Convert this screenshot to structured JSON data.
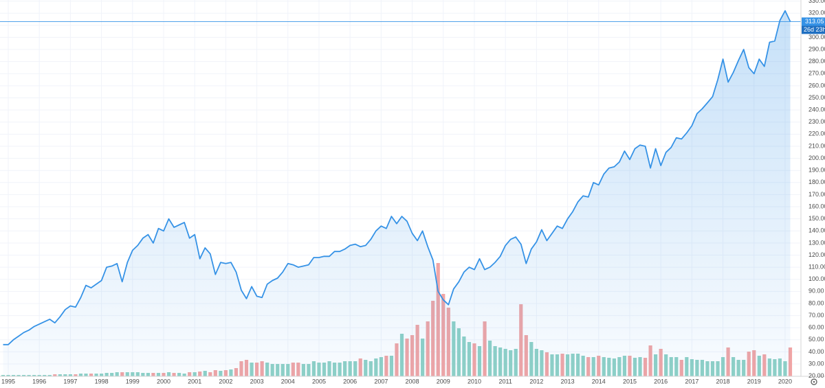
{
  "chart_data": {
    "type": "line",
    "categories": [
      null,
      "1995",
      null,
      null,
      null,
      null,
      null,
      "1996",
      null,
      null,
      null,
      null,
      null,
      "1997",
      null,
      null,
      null,
      null,
      null,
      "1998",
      null,
      null,
      null,
      null,
      null,
      "1999",
      null,
      null,
      null,
      null,
      null,
      "2000",
      null,
      null,
      null,
      null,
      null,
      "2001",
      null,
      null,
      null,
      null,
      null,
      "2002",
      null,
      null,
      null,
      null,
      null,
      "2003",
      null,
      null,
      null,
      null,
      null,
      "2004",
      null,
      null,
      null,
      null,
      null,
      "2005",
      null,
      null,
      null,
      null,
      null,
      "2006",
      null,
      null,
      null,
      null,
      null,
      "2007",
      null,
      null,
      null,
      null,
      null,
      "2008",
      null,
      null,
      null,
      null,
      null,
      "2009",
      null,
      null,
      null,
      null,
      null,
      "2010",
      null,
      null,
      null,
      null,
      null,
      "2011",
      null,
      null,
      null,
      null,
      null,
      "2012",
      null,
      null,
      null,
      null,
      null,
      "2013",
      null,
      null,
      null,
      null,
      null,
      "2014",
      null,
      null,
      null,
      null,
      null,
      "2015",
      null,
      null,
      null,
      null,
      null,
      "2016",
      null,
      null,
      null,
      null,
      null,
      "2017",
      null,
      null,
      null,
      null,
      null,
      "2018",
      null,
      null,
      null,
      null,
      null,
      "2019",
      null,
      null,
      null,
      null,
      null,
      "2020",
      null
    ],
    "series": [
      {
        "color": "#3592e6",
        "values": [
          46,
          46,
          50,
          53,
          56,
          58,
          61,
          63,
          65,
          67,
          64,
          69,
          75,
          78,
          77,
          85,
          95,
          93,
          96,
          99,
          110,
          111,
          113,
          98,
          114,
          124,
          128,
          134,
          137,
          130,
          142,
          140,
          150,
          143,
          145,
          147,
          134,
          137,
          117,
          126,
          121,
          104,
          114,
          113,
          114,
          106,
          91,
          84,
          94,
          86,
          85,
          96,
          99,
          101,
          106,
          113,
          112,
          110,
          111,
          112,
          118,
          118,
          119,
          119,
          123,
          123,
          125,
          128,
          129,
          127,
          128,
          133,
          140,
          144,
          142,
          152,
          146,
          152,
          148,
          138,
          132,
          140,
          127,
          116,
          90,
          83,
          79,
          92,
          98,
          106,
          110,
          108,
          117,
          108,
          110,
          114,
          119,
          128,
          133,
          135,
          129,
          113,
          125,
          131,
          141,
          132,
          138,
          144,
          142,
          150,
          156,
          164,
          169,
          168,
          180,
          178,
          187,
          192,
          193,
          197,
          206,
          199,
          208,
          211,
          210,
          192,
          208,
          194,
          205,
          209,
          217,
          216,
          221,
          227,
          237,
          241,
          246,
          251,
          265,
          282,
          263,
          271,
          281,
          290,
          275,
          270,
          282,
          276,
          296,
          297,
          314,
          322,
          313.05
        ]
      },
      {
        "type": "bar",
        "axis": "y2",
        "up_color": "#8fd1c6",
        "down_color": "#f1a5a5",
        "values": [
          2,
          2,
          2,
          2,
          2,
          2,
          2,
          2,
          2,
          2,
          3,
          3,
          3,
          3,
          3,
          4,
          4,
          4,
          4,
          4,
          5,
          5,
          6,
          6,
          6,
          6,
          6,
          5,
          5,
          5,
          5,
          5,
          6,
          5,
          5,
          4,
          6,
          6,
          7,
          8,
          6,
          9,
          8,
          9,
          10,
          12,
          22,
          24,
          20,
          20,
          22,
          20,
          18,
          18,
          18,
          18,
          20,
          20,
          18,
          18,
          22,
          20,
          20,
          22,
          20,
          20,
          22,
          22,
          22,
          26,
          24,
          22,
          26,
          28,
          30,
          30,
          48,
          62,
          55,
          60,
          75,
          55,
          80,
          110,
          165,
          120,
          100,
          80,
          70,
          58,
          50,
          48,
          44,
          80,
          52,
          44,
          42,
          40,
          38,
          40,
          105,
          60,
          50,
          40,
          38,
          35,
          32,
          32,
          33,
          32,
          33,
          33,
          30,
          28,
          28,
          30,
          28,
          27,
          26,
          28,
          30,
          30,
          27,
          28,
          27,
          45,
          32,
          40,
          32,
          28,
          28,
          24,
          28,
          25,
          24,
          24,
          22,
          22,
          22,
          28,
          42,
          28,
          24,
          24,
          36,
          38,
          30,
          32,
          26,
          25,
          26,
          22,
          42
        ]
      }
    ],
    "countdown": "26d 23h",
    "ylim": [
      19.8,
      330.9
    ],
    "y2lim": [
      0,
      548
    ],
    "yticks": [
      {
        "value": 20,
        "label": "20.00"
      },
      {
        "value": 30,
        "label": "30.00"
      },
      {
        "value": 40,
        "label": "40.00"
      },
      {
        "value": 50,
        "label": "50.00"
      },
      {
        "value": 60,
        "label": "60.00"
      },
      {
        "value": 70,
        "label": "70.00"
      },
      {
        "value": 80,
        "label": "80.00"
      },
      {
        "value": 90,
        "label": "90.00"
      },
      {
        "value": 100,
        "label": "100.00"
      },
      {
        "value": 110,
        "label": "110.00"
      },
      {
        "value": 120,
        "label": "120.00"
      },
      {
        "value": 130,
        "label": "130.00"
      },
      {
        "value": 140,
        "label": "140.00"
      },
      {
        "value": 150,
        "label": "150.00"
      },
      {
        "value": 160,
        "label": "160.00"
      },
      {
        "value": 170,
        "label": "170.00"
      },
      {
        "value": 180,
        "label": "180.00"
      },
      {
        "value": 190,
        "label": "190.00"
      },
      {
        "value": 200,
        "label": "200.00"
      },
      {
        "value": 210,
        "label": "210.00"
      },
      {
        "value": 220,
        "label": "220.00"
      },
      {
        "value": 230,
        "label": "230.00"
      },
      {
        "value": 240,
        "label": "240.00"
      },
      {
        "value": 250,
        "label": "250.00"
      },
      {
        "value": 260,
        "label": "260.00"
      },
      {
        "value": 270,
        "label": "270.00"
      },
      {
        "value": 280,
        "label": "280.00"
      },
      {
        "value": 290,
        "label": "290.00"
      },
      {
        "value": 300,
        "label": "300.00"
      },
      {
        "value": 310,
        "label": "310.00"
      },
      {
        "value": 320,
        "label": "320.00"
      },
      {
        "value": 330,
        "label": "330.00"
      }
    ],
    "grid": true
  }
}
